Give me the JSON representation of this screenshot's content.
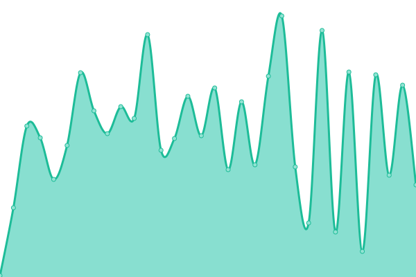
{
  "chart_data": {
    "type": "area",
    "title": "",
    "xlabel": "",
    "ylabel": "",
    "x": [
      0,
      1,
      2,
      3,
      4,
      5,
      6,
      7,
      8,
      9,
      10,
      11,
      12,
      13,
      14,
      15,
      16,
      17,
      18,
      19,
      20,
      21,
      22,
      23,
      24,
      25,
      26,
      27,
      28,
      29,
      30,
      31
    ],
    "values": [
      2,
      100,
      218,
      201,
      141,
      190,
      295,
      240,
      207,
      246,
      229,
      350,
      183,
      200,
      261,
      204,
      273,
      155,
      253,
      162,
      290,
      377,
      159,
      78,
      356,
      65,
      296,
      37,
      292,
      147,
      277,
      133
    ],
    "ylim": [
      0,
      400
    ],
    "xlim": [
      0,
      31
    ],
    "grid": false,
    "axes_visible": false,
    "curve": "smooth",
    "colors": {
      "fill": "#88dfd0",
      "line": "#1dbc98",
      "point_fill": "#92e3d3",
      "point_stroke": "#1dbc98"
    }
  }
}
